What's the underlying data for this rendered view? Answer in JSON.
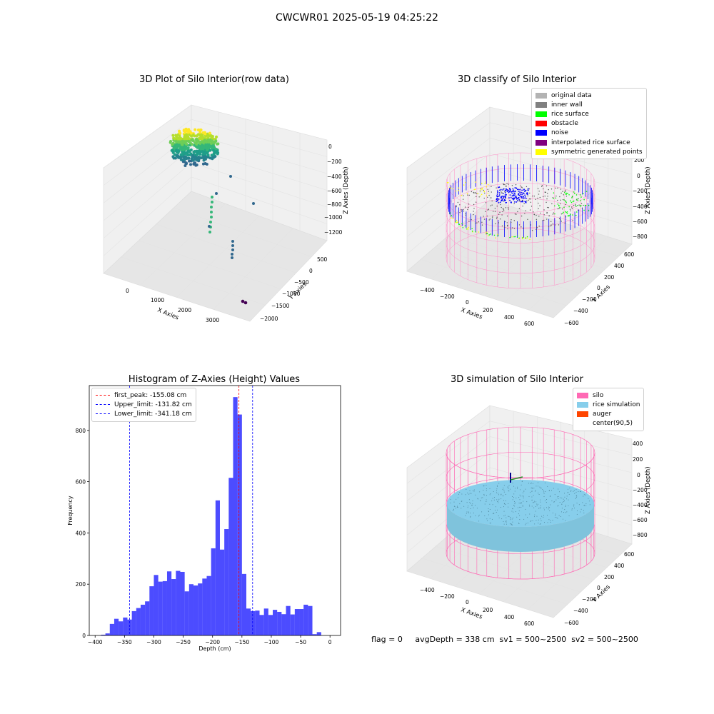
{
  "suptitle": "CWCWR01 2025-05-19 04:25:22",
  "footer": "flag = 0     avgDepth = 338 cm  sv1 = 500~2500  sv2 = 500~2500",
  "chart_data": [
    {
      "type": "scatter",
      "title": "3D Plot of Silo Interior(row data)",
      "xlabel": "X Axies",
      "ylabel": "Y Axies",
      "zlabel": "Z Axies (Depth)",
      "x_ticks": [
        "0",
        "1000",
        "2000",
        "3000"
      ],
      "y_ticks": [
        "500",
        "0",
        "−500",
        "−1000",
        "−1500",
        "−2000"
      ],
      "z_ticks": [
        "0",
        "−200",
        "−400",
        "−600",
        "−800",
        "−1000",
        "−1200"
      ],
      "colormap": "viridis",
      "grid": true
    },
    {
      "type": "scatter",
      "title": "3D classify of Silo Interior",
      "xlabel": "X Axies",
      "ylabel": "Y Axies",
      "zlabel": "Z Axies (Depth)",
      "x_ticks": [
        "−400",
        "−200",
        "0",
        "200",
        "400",
        "600"
      ],
      "y_ticks": [
        "600",
        "400",
        "200",
        "0",
        "−200",
        "−400",
        "−600"
      ],
      "z_ticks": [
        "200",
        "0",
        "−200",
        "−400",
        "−600",
        "−800"
      ],
      "legend_position": "upper right",
      "legend": [
        {
          "label": "original data",
          "color": "#b3b3b3"
        },
        {
          "label": "inner wall",
          "color": "#808080"
        },
        {
          "label": "rice surface",
          "color": "#00ff00"
        },
        {
          "label": "obstacle",
          "color": "#ff0000"
        },
        {
          "label": "noise",
          "color": "#0000ff"
        },
        {
          "label": "interpolated rice surface",
          "color": "#800080"
        },
        {
          "label": "symmetric generated points",
          "color": "#ffff00"
        }
      ],
      "grid": true
    },
    {
      "type": "bar",
      "title": "Histogram of Z-Axies (Height) Values",
      "xlabel": "Depth (cm)",
      "ylabel": "Frequency",
      "xlim": [
        -410,
        18
      ],
      "ylim": [
        0,
        975
      ],
      "x_ticks": [
        -400,
        -350,
        -300,
        -250,
        -200,
        -150,
        -100,
        -50,
        0
      ],
      "y_ticks": [
        0,
        200,
        400,
        600,
        800
      ],
      "bin_start": -390,
      "bin_width": 7.5,
      "counts": [
        3,
        8,
        45,
        65,
        55,
        70,
        62,
        95,
        107,
        120,
        133,
        192,
        236,
        210,
        212,
        250,
        220,
        252,
        248,
        172,
        200,
        195,
        203,
        222,
        232,
        340,
        527,
        335,
        415,
        615,
        930,
        862,
        240,
        105,
        95,
        97,
        80,
        105,
        80,
        100,
        92,
        83,
        115,
        82,
        103,
        103,
        120,
        115,
        5,
        13
      ],
      "bar_color": "#0000ff",
      "vlines": [
        {
          "label": "first_peak: -155.08 cm",
          "x": -155.08,
          "color": "#ff0000"
        },
        {
          "label": "Upper_limit: -131.82 cm",
          "x": -131.82,
          "color": "#0000ff"
        },
        {
          "label": "Lower_limit: -341.18 cm",
          "x": -341.18,
          "color": "#0000ff"
        }
      ],
      "legend_position": "upper left"
    },
    {
      "type": "scatter",
      "title": "3D simulation of Silo Interior",
      "xlabel": "X Axies",
      "ylabel": "Y Axies",
      "zlabel": "Z Axies (Depth)",
      "x_ticks": [
        "−400",
        "−200",
        "0",
        "200",
        "400",
        "600"
      ],
      "y_ticks": [
        "600",
        "400",
        "200",
        "0",
        "−200",
        "−400",
        "−600"
      ],
      "z_ticks": [
        "400",
        "200",
        "0",
        "−200",
        "−400",
        "−600",
        "−800"
      ],
      "legend_position": "upper right",
      "legend": [
        {
          "label": "silo",
          "color": "#ff69b4"
        },
        {
          "label": "rice simulation",
          "color": "#87ceeb"
        },
        {
          "label": "auger",
          "color": "#ff4500"
        },
        {
          "label": "center(90,5)",
          "color": "#ffffff"
        }
      ],
      "grid": true
    }
  ]
}
